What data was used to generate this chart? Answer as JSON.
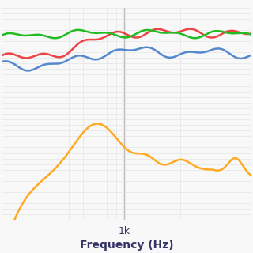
{
  "xlabel": "Frequency (Hz)",
  "background_color": "#f8f8f8",
  "grid_color_major": "#c8c8c8",
  "grid_color_minor": "#e0e0e0",
  "line_colors": {
    "green": "#22bb22",
    "red": "#ee4444",
    "blue": "#5588cc",
    "orange": "#ffaa22"
  },
  "xtick_label": "1k",
  "text_color": "#333366",
  "freq_min": 220,
  "freq_max": 4800
}
